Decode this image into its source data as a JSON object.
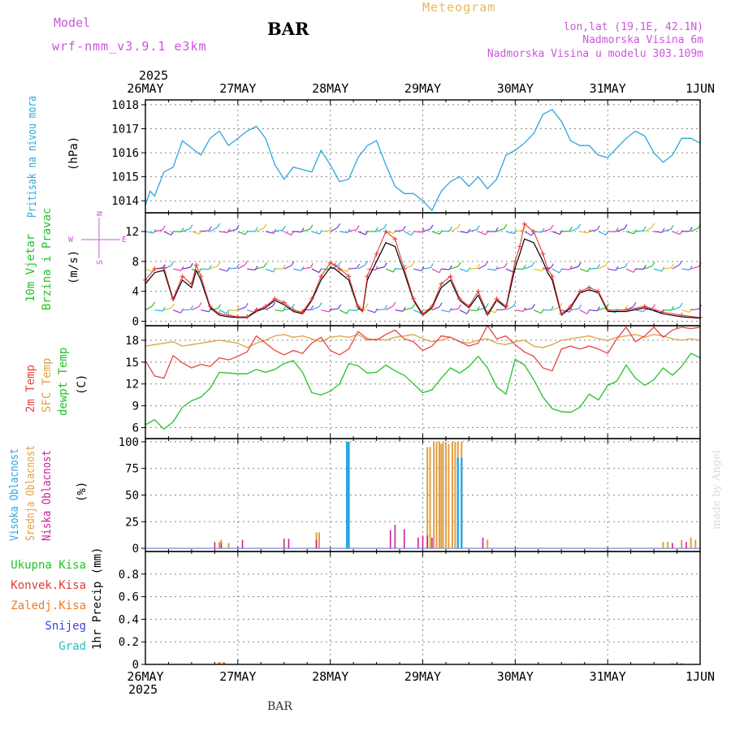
{
  "header": {
    "model_label": "Model",
    "model_name": "wrf-nmm_v3.9.1 e3km",
    "station": "BAR",
    "chart_title": "Meteogram",
    "location": "lon,lat (19.1E, 42.1N)",
    "elevation": "Nadmorska Visina 6m",
    "model_elevation": "Nadmorska Visina u modelu 303.109m"
  },
  "footer": {
    "station": "BAR",
    "watermark": "made by Angel"
  },
  "time_axis": {
    "year": "2025",
    "ticks": [
      "26MAY",
      "27MAY",
      "28MAY",
      "29MAY",
      "30MAY",
      "31MAY",
      "1JUN"
    ]
  },
  "wind_compass": {
    "n": "N",
    "s": "S",
    "w": "W",
    "e": "E"
  },
  "colors": {
    "pressure": "#2aa6e0",
    "wind_speed": "#e23a3a",
    "gust": "#000000",
    "temp2m": "#e64545",
    "sfc_temp": "#e0a040",
    "dewpt": "#22c22a",
    "cloud_high": "#2aa6e0",
    "cloud_mid": "#e0a040",
    "cloud_low": "#cc1f9a",
    "precip_total": "#22c22a",
    "precip_conv": "#e23a3a",
    "precip_frz": "#f07a28",
    "snow": "#4040e0",
    "hail": "#20c0c0",
    "label_purple": "#cc55dd"
  },
  "chart_data": [
    {
      "type": "line",
      "name": "sea-level-pressure",
      "ylabel_rotated": "Pritisak na nivou mora",
      "unit": "(hPa)",
      "ylim": [
        1013.5,
        1018.2
      ],
      "yticks": [
        1014,
        1015,
        1016,
        1017,
        1018
      ],
      "x_days": [
        0,
        0.05,
        0.1,
        0.2,
        0.3,
        0.4,
        0.5,
        0.6,
        0.7,
        0.8,
        0.9,
        1.0,
        1.1,
        1.2,
        1.3,
        1.4,
        1.5,
        1.6,
        1.7,
        1.8,
        1.9,
        2.0,
        2.1,
        2.2,
        2.3,
        2.4,
        2.5,
        2.6,
        2.7,
        2.8,
        2.9,
        3.0,
        3.1,
        3.2,
        3.3,
        3.4,
        3.5,
        3.6,
        3.7,
        3.8,
        3.9,
        4.0,
        4.1,
        4.2,
        4.3,
        4.4,
        4.5,
        4.6,
        4.7,
        4.8,
        4.9,
        5.0,
        5.1,
        5.2,
        5.3,
        5.4,
        5.5,
        5.6,
        5.7,
        5.8,
        5.9,
        6.0
      ],
      "values": [
        1013.8,
        1014.4,
        1014.2,
        1015.2,
        1015.4,
        1016.5,
        1016.2,
        1015.9,
        1016.6,
        1016.9,
        1016.3,
        1016.6,
        1016.9,
        1017.1,
        1016.6,
        1015.5,
        1014.9,
        1015.4,
        1015.3,
        1015.2,
        1016.1,
        1015.5,
        1014.8,
        1014.9,
        1015.8,
        1016.3,
        1016.5,
        1015.5,
        1014.6,
        1014.3,
        1014.3,
        1014.0,
        1013.6,
        1014.4,
        1014.8,
        1015.0,
        1014.6,
        1015.0,
        1014.5,
        1014.9,
        1015.9,
        1016.1,
        1016.4,
        1016.8,
        1017.6,
        1017.8,
        1017.3,
        1016.5,
        1016.3,
        1016.3,
        1015.9,
        1015.8,
        1016.2,
        1016.6,
        1016.9,
        1016.7,
        1016.0,
        1015.6,
        1015.9,
        1016.6,
        1016.6,
        1016.4
      ]
    },
    {
      "type": "line",
      "name": "wind-10m",
      "ylabel_rotated": [
        "10m Vjetar",
        "Brzina i Pravac"
      ],
      "unit": "(m/s)",
      "ylim": [
        -0.6,
        14.5
      ],
      "yticks": [
        0,
        4,
        8,
        12
      ],
      "barb_levels": [
        1.5,
        7,
        12
      ],
      "x_days": [
        0,
        0.1,
        0.2,
        0.3,
        0.4,
        0.5,
        0.55,
        0.6,
        0.7,
        0.8,
        0.9,
        1.0,
        1.1,
        1.2,
        1.3,
        1.4,
        1.5,
        1.6,
        1.7,
        1.8,
        1.9,
        2.0,
        2.05,
        2.1,
        2.2,
        2.3,
        2.35,
        2.4,
        2.5,
        2.6,
        2.7,
        2.8,
        2.9,
        3.0,
        3.1,
        3.2,
        3.3,
        3.4,
        3.5,
        3.6,
        3.7,
        3.8,
        3.9,
        4.0,
        4.05,
        4.1,
        4.2,
        4.3,
        4.35,
        4.4,
        4.5,
        4.6,
        4.7,
        4.8,
        4.9,
        5.0,
        5.2,
        5.4,
        5.6,
        5.8,
        6.0
      ],
      "speed": [
        5.5,
        7,
        7.2,
        3,
        6,
        5,
        7.5,
        6,
        2,
        1,
        0.8,
        0.6,
        0.6,
        1.5,
        2,
        3,
        2.5,
        1.5,
        1.2,
        3,
        6,
        7.8,
        7.5,
        7,
        6,
        2,
        1.5,
        6,
        9,
        12,
        11,
        7,
        3,
        1,
        2,
        5,
        6,
        3,
        2,
        4,
        1,
        3,
        2,
        8,
        10,
        13,
        12,
        9,
        7,
        6,
        1,
        2,
        4,
        4.5,
        4,
        1.5,
        1.5,
        2,
        1.2,
        0.8,
        0.5
      ],
      "gust": [
        5,
        6.5,
        6.8,
        2.8,
        5.5,
        4.5,
        6.8,
        5.5,
        1.8,
        0.8,
        0.6,
        0.5,
        0.5,
        1.3,
        1.8,
        2.8,
        2.2,
        1.3,
        1,
        2.8,
        5.5,
        7.2,
        7,
        6.5,
        5.5,
        1.8,
        1.3,
        5.5,
        8,
        10.5,
        10,
        6.5,
        2.8,
        0.8,
        1.8,
        4.5,
        5.5,
        2.8,
        1.8,
        3.5,
        0.8,
        2.8,
        1.8,
        7.2,
        9,
        11,
        10.5,
        8,
        6.5,
        5.5,
        0.8,
        1.8,
        3.8,
        4.2,
        3.8,
        1.3,
        1.3,
        1.8,
        1,
        0.6,
        0.4
      ]
    },
    {
      "type": "line",
      "name": "temperature",
      "ylabel_rotated": [
        "2m Temp",
        "SFC Temp",
        "dewpt Temp"
      ],
      "unit": "(C)",
      "ylim": [
        4.5,
        20
      ],
      "yticks": [
        6,
        9,
        12,
        15,
        18
      ],
      "x_days": [
        0,
        0.1,
        0.2,
        0.3,
        0.4,
        0.5,
        0.6,
        0.7,
        0.8,
        0.9,
        1.0,
        1.1,
        1.2,
        1.3,
        1.4,
        1.5,
        1.6,
        1.7,
        1.8,
        1.9,
        2.0,
        2.1,
        2.2,
        2.3,
        2.4,
        2.5,
        2.6,
        2.7,
        2.8,
        2.9,
        3.0,
        3.1,
        3.2,
        3.3,
        3.4,
        3.5,
        3.6,
        3.7,
        3.8,
        3.9,
        4.0,
        4.1,
        4.2,
        4.3,
        4.4,
        4.5,
        4.6,
        4.7,
        4.8,
        4.9,
        5.0,
        5.1,
        5.2,
        5.3,
        5.4,
        5.5,
        5.6,
        5.7,
        5.8,
        5.9,
        6.0
      ],
      "temp2m": [
        15.2,
        13.1,
        12.8,
        15.9,
        14.9,
        14.2,
        14.7,
        14.4,
        15.6,
        15.3,
        15.8,
        16.4,
        18.6,
        17.6,
        16.6,
        16.0,
        16.6,
        16.2,
        17.6,
        18.4,
        16.6,
        16.0,
        16.8,
        19.2,
        18.2,
        18.0,
        18.8,
        19.4,
        18.2,
        17.8,
        16.6,
        17.2,
        18.6,
        18.4,
        17.8,
        17.2,
        17.6,
        20.0,
        18.2,
        18.6,
        17.4,
        16.4,
        15.8,
        14.2,
        13.8,
        16.8,
        17.2,
        16.8,
        17.2,
        16.8,
        16.2,
        18.2,
        19.8,
        17.8,
        18.6,
        19.8,
        18.4,
        19.4,
        19.8,
        19.6,
        19.8
      ],
      "sfc_temp": [
        17.2,
        17.4,
        17.6,
        17.8,
        17.2,
        17.4,
        17.6,
        17.8,
        18.0,
        17.8,
        17.6,
        17.0,
        17.6,
        18.0,
        18.6,
        18.8,
        18.4,
        18.6,
        18.2,
        17.8,
        18.4,
        18.6,
        18.4,
        18.8,
        18.0,
        18.2,
        18.0,
        18.4,
        18.6,
        18.8,
        18.2,
        17.8,
        18.0,
        18.4,
        17.8,
        17.6,
        18.0,
        18.2,
        17.6,
        17.4,
        17.8,
        18.0,
        17.2,
        17.0,
        17.4,
        18.0,
        18.2,
        18.4,
        18.6,
        18.2,
        18.0,
        18.4,
        18.6,
        18.8,
        18.4,
        18.8,
        18.6,
        18.2,
        18.0,
        18.2,
        18.0
      ],
      "dewpt": [
        6.4,
        7.1,
        5.8,
        6.8,
        8.8,
        9.7,
        10.2,
        11.4,
        13.6,
        13.5,
        13.4,
        13.4,
        14.0,
        13.6,
        14.0,
        14.8,
        15.2,
        13.6,
        10.8,
        10.5,
        11.0,
        12.0,
        14.8,
        14.5,
        13.5,
        13.6,
        14.6,
        13.8,
        13.2,
        12.0,
        10.8,
        11.2,
        12.8,
        14.2,
        13.5,
        14.4,
        15.8,
        14.2,
        11.6,
        10.6,
        15.4,
        14.6,
        12.6,
        10.2,
        8.6,
        8.2,
        8.1,
        8.8,
        10.6,
        9.8,
        11.8,
        12.4,
        14.6,
        12.8,
        11.8,
        12.6,
        14.2,
        13.2,
        14.4,
        16.2,
        15.6
      ]
    },
    {
      "type": "bar",
      "name": "cloud-cover",
      "ylabel_rotated": [
        "Visoka Oblacnost",
        "Srednja Oblacnost",
        "Niska Oblacnost"
      ],
      "unit": "(%)",
      "ylim": [
        -3,
        103
      ],
      "yticks": [
        0,
        25,
        50,
        75,
        100
      ],
      "high": {
        "x_days": [
          2.18,
          2.19,
          2.2,
          3.38,
          3.42
        ],
        "values": [
          100,
          100,
          100,
          85,
          85
        ]
      },
      "mid": {
        "x_days": [
          0.8,
          0.82,
          0.9,
          1.85,
          1.88,
          3.05,
          3.08,
          3.12,
          3.15,
          3.18,
          3.2,
          3.22,
          3.25,
          3.28,
          3.32,
          3.35,
          3.38,
          3.42,
          3.7,
          5.6,
          5.65,
          5.8,
          5.9,
          5.95
        ],
        "values": [
          6,
          8,
          5,
          15,
          15,
          95,
          95,
          100,
          100,
          100,
          98,
          100,
          100,
          98,
          100,
          100,
          100,
          100,
          8,
          6,
          6,
          8,
          10,
          8
        ]
      },
      "low": {
        "x_days": [
          0.75,
          0.82,
          1.05,
          1.5,
          1.55,
          1.85,
          2.65,
          2.7,
          2.8,
          2.95,
          3.0,
          3.05,
          3.1,
          3.65,
          5.7,
          5.85
        ],
        "values": [
          6,
          5,
          8,
          9,
          9,
          8,
          17,
          22,
          18,
          10,
          12,
          12,
          10,
          10,
          5,
          6
        ]
      }
    },
    {
      "type": "bar",
      "name": "precipitation-1hr",
      "ylabel_rotated": "1hr Precip (mm)",
      "ylim": [
        0,
        1.0
      ],
      "yticks": [
        0,
        0.2,
        0.4,
        0.6,
        0.8
      ],
      "ytick_labels": [
        "0",
        "0.2",
        "0.4",
        "0.6",
        "0.8"
      ],
      "legend": [
        "Ukupna Kisa",
        "Konvek.Kisa",
        "Zaledj.Kisa",
        "Snijeg",
        "Grad"
      ],
      "total": {
        "x_days": [
          0.8,
          0.85,
          5.7,
          5.75,
          5.8
        ],
        "values": [
          0.02,
          0.02,
          0.01,
          0.01,
          0.01
        ]
      }
    }
  ]
}
